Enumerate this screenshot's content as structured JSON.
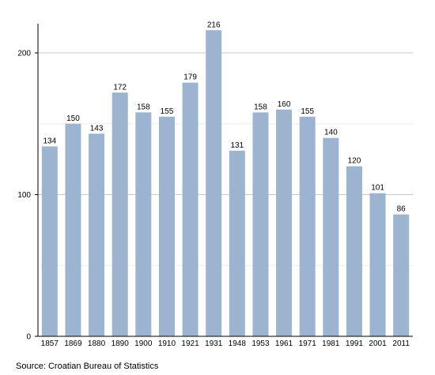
{
  "chart_data": {
    "type": "bar",
    "categories": [
      "1857",
      "1869",
      "1880",
      "1890",
      "1900",
      "1910",
      "1921",
      "1931",
      "1948",
      "1953",
      "1961",
      "1971",
      "1981",
      "1991",
      "2001",
      "2011"
    ],
    "values": [
      134,
      150,
      143,
      172,
      158,
      155,
      179,
      216,
      131,
      158,
      160,
      155,
      140,
      120,
      101,
      86
    ],
    "title": "",
    "xlabel": "",
    "ylabel": "",
    "ylim": [
      0,
      220
    ],
    "yticks": [
      0,
      100,
      200
    ],
    "grid": true,
    "bar_color": "#9cb4cf",
    "data_labels": true
  },
  "source": "Source: Croatian Bureau of Statistics"
}
